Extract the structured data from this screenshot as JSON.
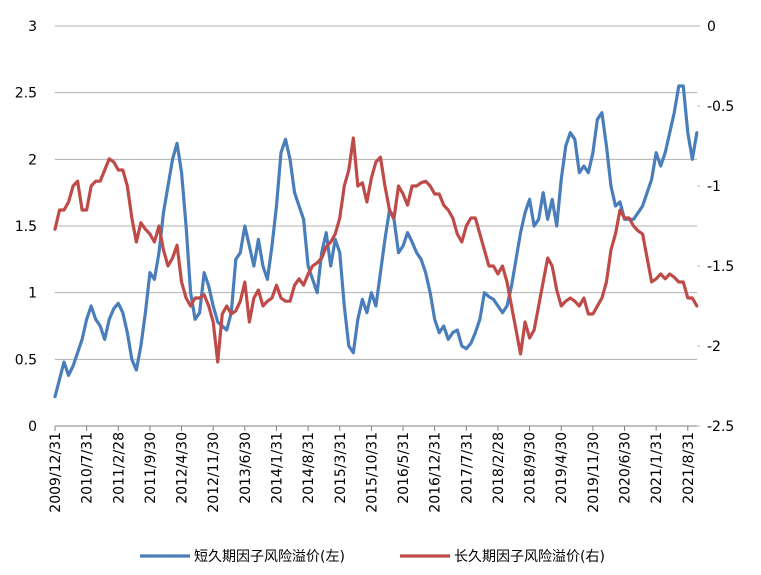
{
  "chart_data": {
    "type": "line",
    "categories": [
      "2009/12/31",
      null,
      null,
      null,
      null,
      null,
      null,
      "2010/7/31",
      null,
      null,
      null,
      null,
      null,
      null,
      "2011/2/28",
      null,
      null,
      null,
      null,
      null,
      null,
      "2011/9/30",
      null,
      null,
      null,
      null,
      null,
      null,
      "2012/4/30",
      null,
      null,
      null,
      null,
      null,
      null,
      "2012/11/30",
      null,
      null,
      null,
      null,
      null,
      null,
      "2013/6/30",
      null,
      null,
      null,
      null,
      null,
      null,
      "2014/1/31",
      null,
      null,
      null,
      null,
      null,
      null,
      "2014/8/31",
      null,
      null,
      null,
      null,
      null,
      null,
      "2015/3/31",
      null,
      null,
      null,
      null,
      null,
      null,
      "2015/10/31",
      null,
      null,
      null,
      null,
      null,
      null,
      "2016/5/31",
      null,
      null,
      null,
      null,
      null,
      null,
      "2016/12/31",
      null,
      null,
      null,
      null,
      null,
      null,
      "2017/7/31",
      null,
      null,
      null,
      null,
      null,
      null,
      "2018/2/28",
      null,
      null,
      null,
      null,
      null,
      null,
      "2018/9/30",
      null,
      null,
      null,
      null,
      null,
      null,
      "2019/4/30",
      null,
      null,
      null,
      null,
      null,
      null,
      "2019/11/30",
      null,
      null,
      null,
      null,
      null,
      null,
      "2020/6/30",
      null,
      null,
      null,
      null,
      null,
      null,
      "2021/1/31",
      null,
      null,
      null,
      null,
      null,
      null,
      "2021/8/31",
      null,
      null
    ],
    "series": [
      {
        "name": "短久期因子风险溢价(左)",
        "color": "#4a7ebb",
        "axis": "y",
        "values": [
          0.22,
          0.35,
          0.48,
          0.38,
          0.45,
          0.55,
          0.65,
          0.8,
          0.9,
          0.8,
          0.75,
          0.65,
          0.8,
          0.88,
          0.92,
          0.85,
          0.7,
          0.5,
          0.42,
          0.6,
          0.85,
          1.15,
          1.1,
          1.3,
          1.6,
          1.8,
          2.0,
          2.12,
          1.9,
          1.5,
          1.0,
          0.8,
          0.85,
          1.15,
          1.05,
          0.9,
          0.78,
          0.75,
          0.72,
          0.85,
          1.25,
          1.3,
          1.5,
          1.35,
          1.2,
          1.4,
          1.2,
          1.1,
          1.35,
          1.65,
          2.05,
          2.15,
          2.0,
          1.75,
          1.65,
          1.55,
          1.2,
          1.1,
          1.0,
          1.3,
          1.45,
          1.2,
          1.4,
          1.3,
          0.9,
          0.6,
          0.55,
          0.8,
          0.95,
          0.85,
          1.0,
          0.9,
          1.15,
          1.4,
          1.62,
          1.55,
          1.3,
          1.35,
          1.45,
          1.38,
          1.3,
          1.25,
          1.15,
          1.0,
          0.8,
          0.7,
          0.75,
          0.65,
          0.7,
          0.72,
          0.6,
          0.58,
          0.62,
          0.7,
          0.8,
          1.0,
          0.97,
          0.95,
          0.9,
          0.85,
          0.9,
          1.05,
          1.25,
          1.45,
          1.6,
          1.7,
          1.5,
          1.55,
          1.75,
          1.55,
          1.7,
          1.5,
          1.85,
          2.1,
          2.2,
          2.15,
          1.9,
          1.95,
          1.9,
          2.05,
          2.3,
          2.35,
          2.1,
          1.8,
          1.65,
          1.68,
          1.55,
          1.55,
          1.55,
          1.6,
          1.65,
          1.75,
          1.85,
          2.05,
          1.95,
          2.05,
          2.2,
          2.35,
          2.55,
          2.55,
          2.2,
          2.0,
          2.2
        ]
      },
      {
        "name": "长久期因子风险溢价(右)",
        "color": "#be4b48",
        "axis": "y2",
        "values": [
          -1.27,
          -1.15,
          -1.15,
          -1.1,
          -1.0,
          -0.97,
          -1.15,
          -1.15,
          -1.0,
          -0.97,
          -0.97,
          -0.9,
          -0.83,
          -0.85,
          -0.9,
          -0.9,
          -1.0,
          -1.2,
          -1.35,
          -1.23,
          -1.27,
          -1.3,
          -1.35,
          -1.25,
          -1.4,
          -1.5,
          -1.45,
          -1.37,
          -1.6,
          -1.7,
          -1.75,
          -1.7,
          -1.7,
          -1.68,
          -1.75,
          -1.85,
          -2.1,
          -1.8,
          -1.75,
          -1.8,
          -1.78,
          -1.72,
          -1.6,
          -1.85,
          -1.7,
          -1.65,
          -1.75,
          -1.72,
          -1.7,
          -1.62,
          -1.7,
          -1.72,
          -1.72,
          -1.62,
          -1.58,
          -1.62,
          -1.55,
          -1.5,
          -1.48,
          -1.45,
          -1.38,
          -1.35,
          -1.3,
          -1.2,
          -1.0,
          -0.9,
          -0.7,
          -1.0,
          -0.98,
          -1.1,
          -0.95,
          -0.85,
          -0.82,
          -1.0,
          -1.15,
          -1.2,
          -1.0,
          -1.05,
          -1.12,
          -1.0,
          -1.0,
          -0.98,
          -0.97,
          -1.0,
          -1.05,
          -1.05,
          -1.12,
          -1.15,
          -1.2,
          -1.3,
          -1.35,
          -1.25,
          -1.2,
          -1.2,
          -1.3,
          -1.4,
          -1.5,
          -1.5,
          -1.55,
          -1.5,
          -1.6,
          -1.75,
          -1.9,
          -2.05,
          -1.85,
          -1.95,
          -1.9,
          -1.75,
          -1.6,
          -1.45,
          -1.5,
          -1.65,
          -1.75,
          -1.72,
          -1.7,
          -1.72,
          -1.75,
          -1.7,
          -1.8,
          -1.8,
          -1.75,
          -1.7,
          -1.6,
          -1.4,
          -1.3,
          -1.15,
          -1.2,
          -1.2,
          -1.25,
          -1.28,
          -1.3,
          -1.45,
          -1.6,
          -1.58,
          -1.55,
          -1.58,
          -1.55,
          -1.57,
          -1.6,
          -1.6,
          -1.7,
          -1.7,
          -1.75
        ]
      }
    ],
    "ylim": [
      0,
      3
    ],
    "yticks": [
      0,
      0.5,
      1,
      1.5,
      2,
      2.5,
      3
    ],
    "y2lim": [
      -2.5,
      0
    ],
    "y2ticks": [
      0,
      -0.5,
      -1,
      -1.5,
      -2,
      -2.5
    ],
    "grid": true,
    "legend": "bottom"
  }
}
